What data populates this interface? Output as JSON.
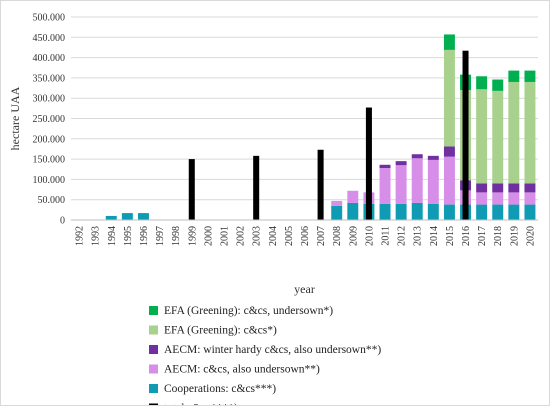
{
  "chart_data": {
    "type": "bar",
    "stacked": true,
    "title": "",
    "xlabel": "year",
    "ylabel": "hectare UAA",
    "ylim": [
      0,
      500000
    ],
    "yticks": [
      0,
      50000,
      100000,
      150000,
      200000,
      250000,
      300000,
      350000,
      400000,
      450000,
      500000
    ],
    "ytick_labels": [
      "0",
      "50.000",
      "100.000",
      "150.000",
      "200.000",
      "250.000",
      "300.000",
      "350.000",
      "400.000",
      "450.000",
      "500.000"
    ],
    "categories": [
      "1992",
      "1993",
      "1994",
      "1995",
      "1996",
      "1997",
      "1998",
      "1999",
      "2000",
      "2001",
      "2002",
      "2003",
      "2004",
      "2005",
      "2006",
      "2007",
      "2008",
      "2009",
      "2010",
      "2011",
      "2012",
      "2013",
      "2014",
      "2015",
      "2016",
      "2017",
      "2018",
      "2019",
      "2020"
    ],
    "grid": "horizontal",
    "legend_position": "bottom",
    "series": [
      {
        "name": "Cooperations: c&cs***)",
        "color": "#0f9bb4",
        "values": [
          0,
          0,
          10000,
          17000,
          17000,
          0,
          0,
          0,
          0,
          0,
          0,
          0,
          0,
          0,
          0,
          0,
          35000,
          42000,
          40000,
          40000,
          40000,
          42000,
          40000,
          38000,
          38000,
          38000,
          38000,
          38000,
          38000
        ]
      },
      {
        "name": "AECM: c&cs, also undersown**)",
        "color": "#d68ee8",
        "values": [
          0,
          0,
          0,
          0,
          0,
          0,
          0,
          0,
          0,
          0,
          0,
          0,
          0,
          0,
          0,
          0,
          12000,
          30000,
          28000,
          88000,
          95000,
          110000,
          108000,
          118000,
          35000,
          30000,
          30000,
          30000,
          30000
        ]
      },
      {
        "name": "AECM: winter hardy c&cs, also undersown**)",
        "color": "#7030a0",
        "values": [
          0,
          0,
          0,
          0,
          0,
          0,
          0,
          0,
          0,
          0,
          0,
          0,
          0,
          0,
          0,
          0,
          0,
          0,
          0,
          8000,
          10000,
          10000,
          10000,
          25000,
          25000,
          22000,
          22000,
          22000,
          22000
        ]
      },
      {
        "name": "EFA (Greening): c&cs*)",
        "color": "#a9d18e",
        "values": [
          0,
          0,
          0,
          0,
          0,
          0,
          0,
          0,
          0,
          0,
          0,
          0,
          0,
          0,
          0,
          0,
          0,
          0,
          0,
          0,
          0,
          0,
          0,
          238000,
          222000,
          232000,
          228000,
          250000,
          250000
        ]
      },
      {
        "name": "EFA (Greening): c&cs, undersown*)",
        "color": "#00b050",
        "values": [
          0,
          0,
          0,
          0,
          0,
          0,
          0,
          0,
          0,
          0,
          0,
          0,
          0,
          0,
          0,
          0,
          0,
          0,
          0,
          0,
          0,
          0,
          0,
          38000,
          38000,
          32000,
          28000,
          28000,
          28000
        ]
      }
    ],
    "total_series": {
      "name": "total c&cs****)",
      "color": "#000000",
      "points": [
        {
          "x": "1999",
          "y": 150000
        },
        {
          "x": "2003",
          "y": 158000
        },
        {
          "x": "2007",
          "y": 173000
        },
        {
          "x": "2010",
          "y": 277000
        },
        {
          "x": "2016",
          "y": 417000
        }
      ]
    },
    "legend": [
      {
        "label": "EFA (Greening): c&cs, undersown*)",
        "color": "#00b050"
      },
      {
        "label": "EFA (Greening): c&cs*)",
        "color": "#a9d18e"
      },
      {
        "label": "AECM: winter hardy c&cs, also undersown**)",
        "color": "#7030a0"
      },
      {
        "label": "AECM: c&cs, also undersown**)",
        "color": "#d68ee8"
      },
      {
        "label": "Cooperations: c&cs***)",
        "color": "#0f9bb4"
      },
      {
        "label": "total c&cs****)",
        "color": "#000000"
      }
    ]
  }
}
